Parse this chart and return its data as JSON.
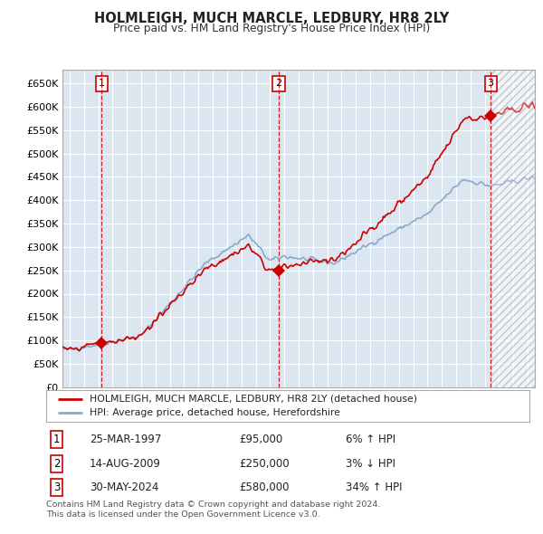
{
  "title": "HOLMLEIGH, MUCH MARCLE, LEDBURY, HR8 2LY",
  "subtitle": "Price paid vs. HM Land Registry's House Price Index (HPI)",
  "line1_label": "HOLMLEIGH, MUCH MARCLE, LEDBURY, HR8 2LY (detached house)",
  "line2_label": "HPI: Average price, detached house, Herefordshire",
  "line1_color": "#cc0000",
  "line2_color": "#88aacc",
  "bg_color": "#dce6f1",
  "marker_color": "#cc0000",
  "vline_color": "#cc0000",
  "sale_points": [
    {
      "year": 1997.23,
      "price": 95000,
      "label": "1"
    },
    {
      "year": 2009.62,
      "price": 250000,
      "label": "2"
    },
    {
      "year": 2024.41,
      "price": 580000,
      "label": "3"
    }
  ],
  "sale_annotations": [
    {
      "label": "1",
      "date": "25-MAR-1997",
      "price": "£95,000",
      "hpi": "6% ↑ HPI"
    },
    {
      "label": "2",
      "date": "14-AUG-2009",
      "price": "£250,000",
      "hpi": "3% ↓ HPI"
    },
    {
      "label": "3",
      "date": "30-MAY-2024",
      "price": "£580,000",
      "hpi": "34% ↑ HPI"
    }
  ],
  "ylim": [
    0,
    680000
  ],
  "xlim": [
    1994.5,
    2027.5
  ],
  "yticks": [
    0,
    50000,
    100000,
    150000,
    200000,
    250000,
    300000,
    350000,
    400000,
    450000,
    500000,
    550000,
    600000,
    650000
  ],
  "ytick_labels": [
    "£0",
    "£50K",
    "£100K",
    "£150K",
    "£200K",
    "£250K",
    "£300K",
    "£350K",
    "£400K",
    "£450K",
    "£500K",
    "£550K",
    "£600K",
    "£650K"
  ],
  "xticks": [
    1995,
    1996,
    1997,
    1998,
    1999,
    2000,
    2001,
    2002,
    2003,
    2004,
    2005,
    2006,
    2007,
    2008,
    2009,
    2010,
    2011,
    2012,
    2013,
    2014,
    2015,
    2016,
    2017,
    2018,
    2019,
    2020,
    2021,
    2022,
    2023,
    2024,
    2025,
    2026,
    2027
  ],
  "footnote": "Contains HM Land Registry data © Crown copyright and database right 2024.\nThis data is licensed under the Open Government Licence v3.0.",
  "future_start": 2024.41,
  "xlim_end": 2027.5
}
